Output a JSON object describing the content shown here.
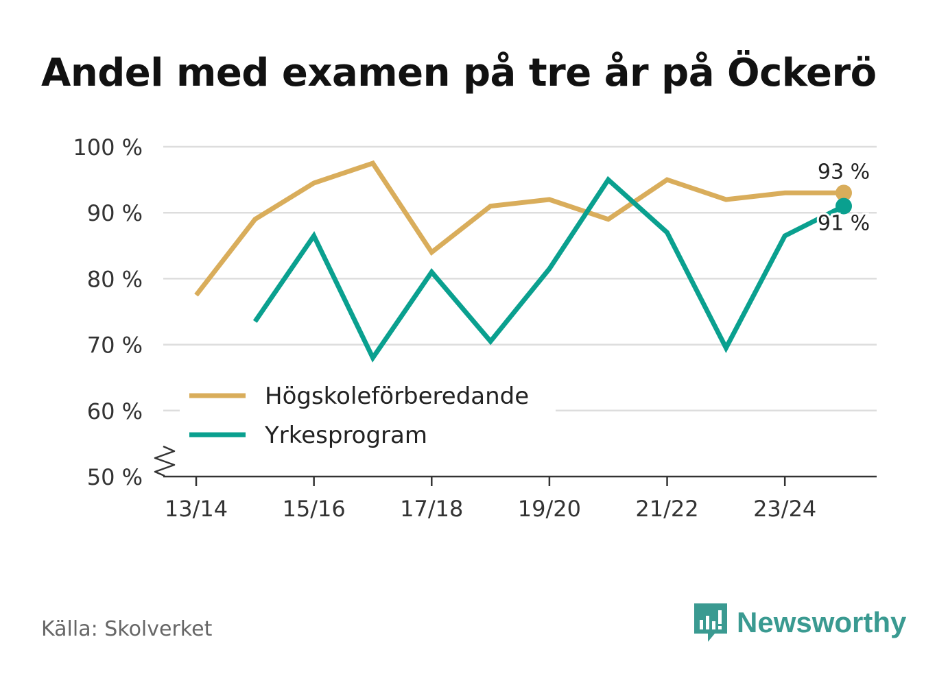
{
  "title": "Andel med examen på tre år på Öckerö",
  "source": "Källa: Skolverket",
  "brand": {
    "name": "Newsworthy",
    "icon": "newsworthy-logo-icon"
  },
  "colors": {
    "series1": "#d9ad5b",
    "series2": "#0aa08f",
    "grid": "#dddddd",
    "axis": "#333333",
    "brand": "#3a9a91"
  },
  "chart_data": {
    "type": "line",
    "title": "Andel med examen på tre år på Öckerö",
    "xlabel": "",
    "ylabel": "",
    "x": [
      "13/14",
      "14/15",
      "15/16",
      "16/17",
      "17/18",
      "18/19",
      "19/20",
      "20/21",
      "21/22",
      "22/23",
      "23/24",
      "24/25"
    ],
    "x_tick_labels": [
      "13/14",
      "15/16",
      "17/18",
      "19/20",
      "21/22",
      "23/24"
    ],
    "y_ticks": [
      50,
      60,
      70,
      80,
      90,
      100
    ],
    "y_tick_labels": [
      "50 %",
      "60 %",
      "70 %",
      "80 %",
      "90 %",
      "100 %"
    ],
    "ylim": [
      50,
      100
    ],
    "y_axis_break": true,
    "series": [
      {
        "name": "Högskoleförberedande",
        "values": [
          77.5,
          89,
          94.5,
          97.5,
          84,
          91,
          92,
          89,
          95,
          92,
          93,
          93
        ],
        "end_label": "93 %"
      },
      {
        "name": "Yrkesprogram",
        "values": [
          null,
          73.5,
          86.5,
          68,
          81,
          70.5,
          81.5,
          95,
          87,
          69.5,
          86.5,
          91
        ],
        "end_label": "91 %"
      }
    ],
    "legend": {
      "position": "bottom-left",
      "entries": [
        "Högskoleförberedande",
        "Yrkesprogram"
      ]
    }
  }
}
